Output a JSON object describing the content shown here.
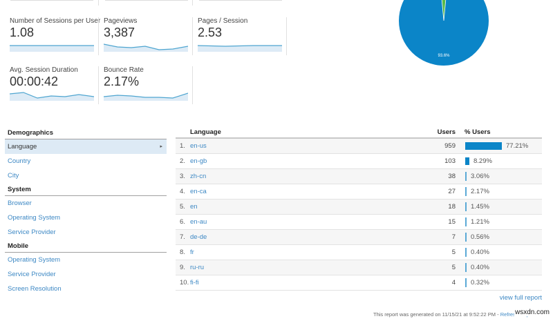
{
  "metrics": [
    {
      "label": "Number of Sessions per User",
      "value": "1.08"
    },
    {
      "label": "Pageviews",
      "value": "3,387"
    },
    {
      "label": "Pages / Session",
      "value": "2.53"
    },
    {
      "label": "Avg. Session Duration",
      "value": "00:00:42"
    },
    {
      "label": "Bounce Rate",
      "value": "2.17%"
    }
  ],
  "pie": {
    "label": "93.6%",
    "main_color": "#0b85c8",
    "slice_color": "#57b947"
  },
  "nav": {
    "sections": [
      {
        "title": "Demographics",
        "items": [
          "Language",
          "Country",
          "City"
        ]
      },
      {
        "title": "System",
        "items": [
          "Browser",
          "Operating System",
          "Service Provider"
        ]
      },
      {
        "title": "Mobile",
        "items": [
          "Operating System",
          "Service Provider",
          "Screen Resolution"
        ]
      }
    ],
    "active_arrow": "▸"
  },
  "table": {
    "headers": {
      "language": "Language",
      "users": "Users",
      "pct_users": "% Users"
    },
    "rows": [
      {
        "idx": "1.",
        "language": "en-us",
        "users": "959",
        "pct": "77.21%",
        "pct_value": 77.21
      },
      {
        "idx": "2.",
        "language": "en-gb",
        "users": "103",
        "pct": "8.29%",
        "pct_value": 8.29
      },
      {
        "idx": "3.",
        "language": "zh-cn",
        "users": "38",
        "pct": "3.06%",
        "pct_value": 3.06
      },
      {
        "idx": "4.",
        "language": "en-ca",
        "users": "27",
        "pct": "2.17%",
        "pct_value": 2.17
      },
      {
        "idx": "5.",
        "language": "en",
        "users": "18",
        "pct": "1.45%",
        "pct_value": 1.45
      },
      {
        "idx": "6.",
        "language": "en-au",
        "users": "15",
        "pct": "1.21%",
        "pct_value": 1.21
      },
      {
        "idx": "7.",
        "language": "de-de",
        "users": "7",
        "pct": "0.56%",
        "pct_value": 0.56
      },
      {
        "idx": "8.",
        "language": "fr",
        "users": "5",
        "pct": "0.40%",
        "pct_value": 0.4
      },
      {
        "idx": "9.",
        "language": "ru-ru",
        "users": "5",
        "pct": "0.40%",
        "pct_value": 0.4
      },
      {
        "idx": "10.",
        "language": "fi-fi",
        "users": "4",
        "pct": "0.32%",
        "pct_value": 0.32
      }
    ]
  },
  "footer": {
    "view_full_report": "view full report",
    "generated_text": "This report was generated on 11/15/21 at 9:52:22 PM - ",
    "refresh_link": "Refresh Report",
    "watermark": "wsxdn.com"
  }
}
